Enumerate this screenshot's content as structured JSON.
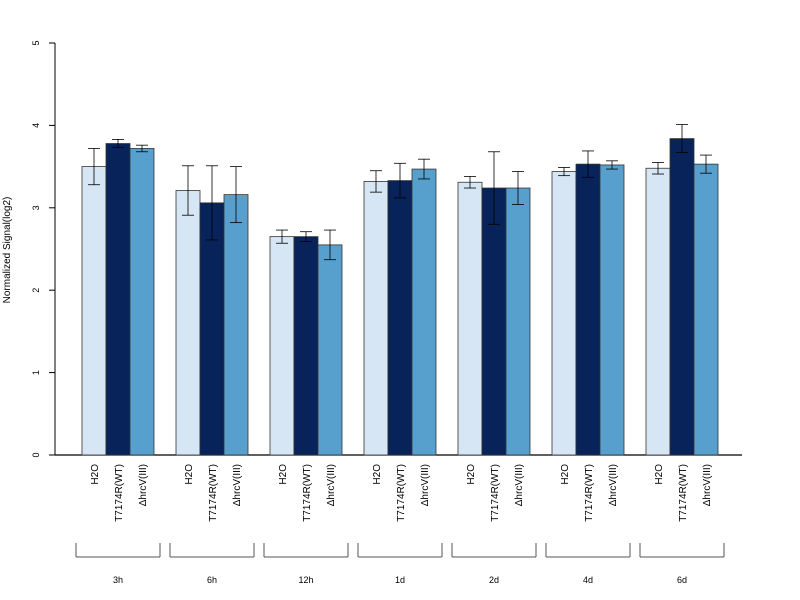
{
  "chart_data": {
    "type": "bar",
    "ylabel": "Normalized Signal(log2)",
    "ylim": [
      0,
      5
    ],
    "yticks": [
      0,
      1,
      2,
      3,
      4,
      5
    ],
    "groups": [
      "3h",
      "6h",
      "12h",
      "1d",
      "2d",
      "4d",
      "6d"
    ],
    "series": [
      {
        "name": "H2O",
        "color": "#d6e6f4",
        "values": [
          3.5,
          3.21,
          2.65,
          3.32,
          3.31,
          3.44,
          3.48
        ],
        "error": [
          0.22,
          0.3,
          0.08,
          0.13,
          0.07,
          0.05,
          0.07
        ]
      },
      {
        "name": "T7174R(WT)",
        "color": "#08235a",
        "values": [
          3.78,
          3.06,
          2.65,
          3.33,
          3.24,
          3.53,
          3.84
        ],
        "error": [
          0.05,
          0.45,
          0.06,
          0.21,
          0.44,
          0.16,
          0.17
        ]
      },
      {
        "name": "ΔhrcV(III)",
        "color": "#579fcc",
        "values": [
          3.72,
          3.16,
          2.55,
          3.47,
          3.24,
          3.52,
          3.53
        ],
        "error": [
          0.04,
          0.34,
          0.18,
          0.12,
          0.2,
          0.05,
          0.11
        ]
      }
    ]
  }
}
